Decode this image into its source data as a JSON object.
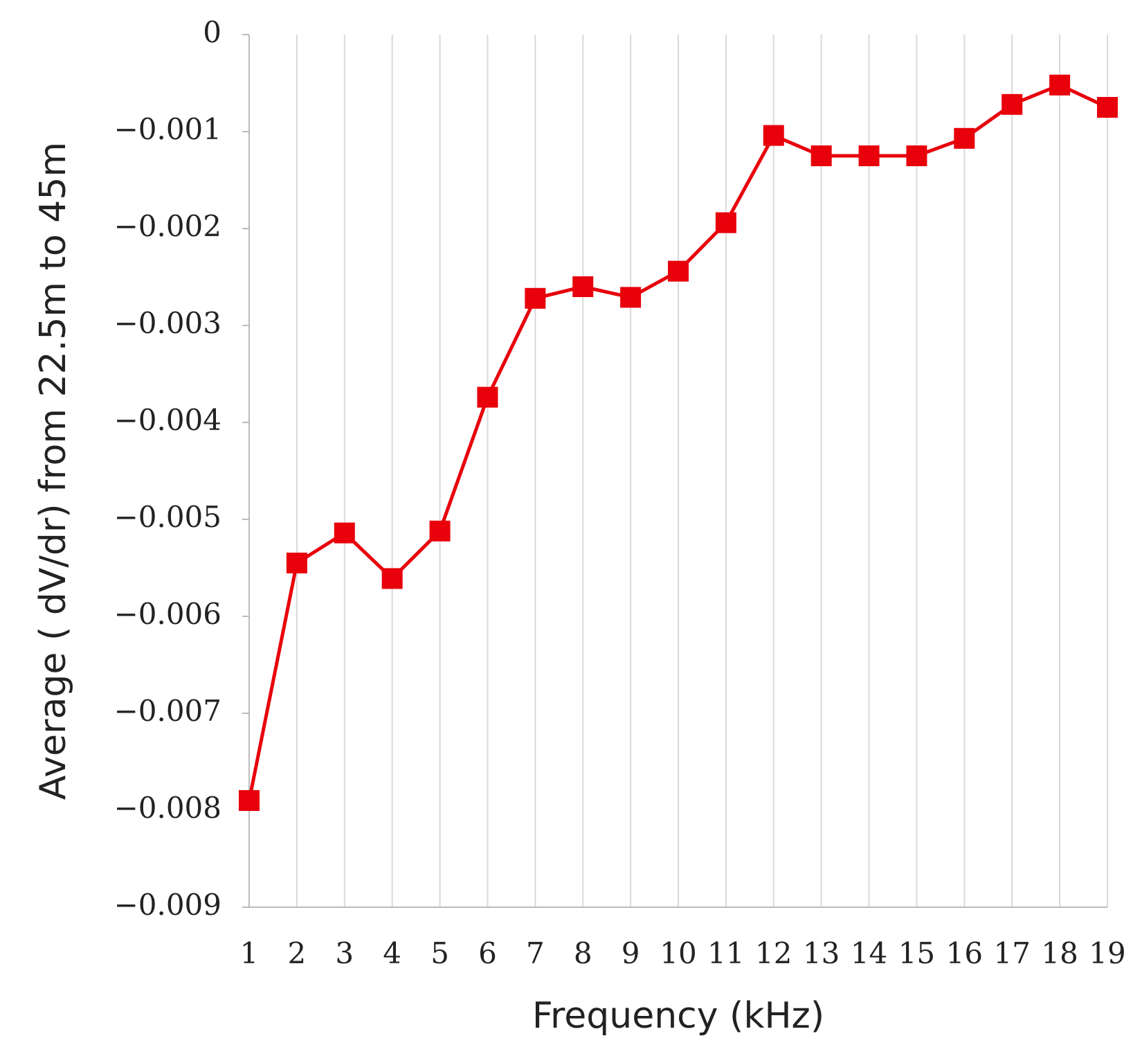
{
  "chart_data": {
    "type": "line",
    "x_label": "Frequency (kHz)",
    "y_label": "Average ( dV/dr) from 22.5m to 45m",
    "x": [
      1,
      2,
      3,
      4,
      5,
      6,
      7,
      8,
      9,
      10,
      11,
      12,
      13,
      14,
      15,
      16,
      17,
      18,
      19
    ],
    "series": [
      {
        "color": "#e8000b",
        "values": [
          -0.0079,
          -0.00545,
          -0.00514,
          -0.00561,
          -0.00512,
          -0.00374,
          -0.00272,
          -0.0026,
          -0.00271,
          -0.00244,
          -0.00194,
          -0.00104,
          -0.00125,
          -0.00125,
          -0.00125,
          -0.00107,
          -0.00072,
          -0.00052,
          -0.00075
        ]
      }
    ],
    "xlim": [
      1,
      19
    ],
    "xticks": [
      1,
      2,
      3,
      4,
      5,
      6,
      7,
      8,
      9,
      10,
      11,
      12,
      13,
      14,
      15,
      16,
      17,
      18,
      19
    ],
    "ylim": [
      -0.009,
      0
    ],
    "yticks": [
      0,
      {
        "value": -0.001,
        "label": "−0.001"
      },
      {
        "value": -0.002,
        "label": "−0.002"
      },
      {
        "value": -0.003,
        "label": "−0.003"
      },
      {
        "value": -0.004,
        "label": "−0.004"
      },
      {
        "value": -0.005,
        "label": "−0.005"
      },
      {
        "value": -0.006,
        "label": "−0.006"
      },
      {
        "value": -0.007,
        "label": "−0.007"
      },
      {
        "value": -0.008,
        "label": "−0.008"
      },
      {
        "value": -0.009,
        "label": "−0.009"
      }
    ],
    "grid": "x"
  }
}
